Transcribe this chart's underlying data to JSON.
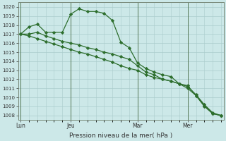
{
  "background_color": "#cce8e8",
  "grid_color": "#aacccc",
  "line_color": "#2d6e2d",
  "marker_color": "#2d6e2d",
  "xlabel": "Pression niveau de la mer( hPa )",
  "ylim": [
    1007.5,
    1020.5
  ],
  "yticks": [
    1008,
    1009,
    1010,
    1011,
    1012,
    1013,
    1014,
    1015,
    1016,
    1017,
    1018,
    1019,
    1020
  ],
  "day_labels": [
    "Lun",
    "Jeu",
    "Mar",
    "Mer"
  ],
  "day_positions": [
    0,
    6,
    14,
    20
  ],
  "xlim": [
    -0.3,
    24.3
  ],
  "line1": [
    1017.0,
    1017.8,
    1018.1,
    1017.2,
    1017.2,
    1017.2,
    1019.2,
    1019.8,
    1019.5,
    1019.5,
    1019.3,
    1018.5,
    1016.1,
    1015.5,
    1013.8,
    1013.2,
    1012.8,
    1012.5,
    1012.3,
    1011.5,
    1011.3,
    1010.2,
    1009.0,
    1008.2,
    1008.0
  ],
  "line2": [
    1017.0,
    1017.0,
    1017.2,
    1016.8,
    1016.5,
    1016.2,
    1016.0,
    1015.8,
    1015.5,
    1015.3,
    1015.0,
    1014.8,
    1014.5,
    1014.2,
    1013.5,
    1012.8,
    1012.5,
    1012.0,
    1011.8,
    1011.5,
    1011.0,
    1010.2,
    1009.1,
    1008.2,
    1008.0
  ],
  "line3": [
    1017.0,
    1016.8,
    1016.5,
    1016.2,
    1015.9,
    1015.6,
    1015.3,
    1015.0,
    1014.8,
    1014.5,
    1014.2,
    1013.9,
    1013.5,
    1013.2,
    1013.0,
    1012.5,
    1012.2,
    1012.0,
    1011.8,
    1011.5,
    1011.2,
    1010.3,
    1009.2,
    1008.3,
    1008.0
  ]
}
